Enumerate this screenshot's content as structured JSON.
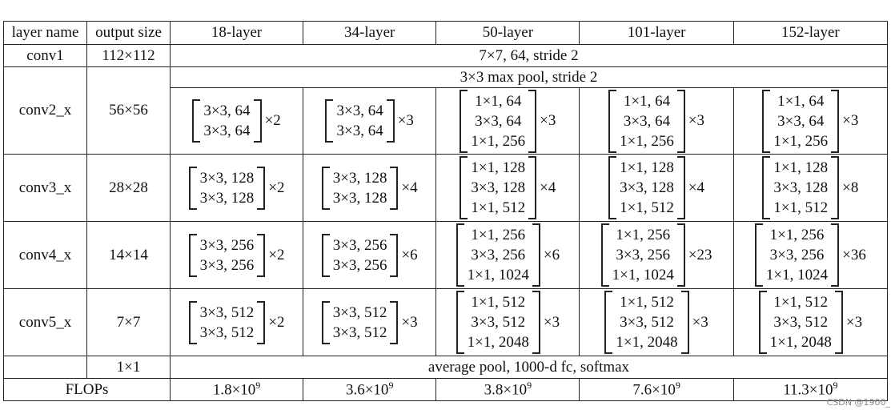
{
  "headers": [
    "layer name",
    "output size",
    "18-layer",
    "34-layer",
    "50-layer",
    "101-layer",
    "152-layer"
  ],
  "conv1": {
    "name": "conv1",
    "out": "112×112",
    "spec": "7×7, 64, stride 2"
  },
  "conv2": {
    "name": "conv2_x",
    "out": "56×56",
    "pool": "3×3 max pool, stride 2",
    "blocks": [
      {
        "lines": [
          "3×3, 64",
          "3×3, 64"
        ],
        "mult": "×2"
      },
      {
        "lines": [
          "3×3, 64",
          "3×3, 64"
        ],
        "mult": "×3"
      },
      {
        "lines": [
          "1×1, 64",
          "3×3, 64",
          "1×1, 256"
        ],
        "mult": "×3"
      },
      {
        "lines": [
          "1×1, 64",
          "3×3, 64",
          "1×1, 256"
        ],
        "mult": "×3"
      },
      {
        "lines": [
          "1×1, 64",
          "3×3, 64",
          "1×1, 256"
        ],
        "mult": "×3"
      }
    ]
  },
  "conv3": {
    "name": "conv3_x",
    "out": "28×28",
    "blocks": [
      {
        "lines": [
          "3×3, 128",
          "3×3, 128"
        ],
        "mult": "×2"
      },
      {
        "lines": [
          "3×3, 128",
          "3×3, 128"
        ],
        "mult": "×4"
      },
      {
        "lines": [
          "1×1, 128",
          "3×3, 128",
          "1×1, 512"
        ],
        "mult": "×4"
      },
      {
        "lines": [
          "1×1, 128",
          "3×3, 128",
          "1×1, 512"
        ],
        "mult": "×4"
      },
      {
        "lines": [
          "1×1, 128",
          "3×3, 128",
          "1×1, 512"
        ],
        "mult": "×8"
      }
    ]
  },
  "conv4": {
    "name": "conv4_x",
    "out": "14×14",
    "blocks": [
      {
        "lines": [
          "3×3, 256",
          "3×3, 256"
        ],
        "mult": "×2"
      },
      {
        "lines": [
          "3×3, 256",
          "3×3, 256"
        ],
        "mult": "×6"
      },
      {
        "lines": [
          "1×1, 256",
          "3×3, 256",
          "1×1, 1024"
        ],
        "mult": "×6"
      },
      {
        "lines": [
          "1×1, 256",
          "3×3, 256",
          "1×1, 1024"
        ],
        "mult": "×23"
      },
      {
        "lines": [
          "1×1, 256",
          "3×3, 256",
          "1×1, 1024"
        ],
        "mult": "×36"
      }
    ]
  },
  "conv5": {
    "name": "conv5_x",
    "out": "7×7",
    "blocks": [
      {
        "lines": [
          "3×3, 512",
          "3×3, 512"
        ],
        "mult": "×2"
      },
      {
        "lines": [
          "3×3, 512",
          "3×3, 512"
        ],
        "mult": "×3"
      },
      {
        "lines": [
          "1×1, 512",
          "3×3, 512",
          "1×1, 2048"
        ],
        "mult": "×3"
      },
      {
        "lines": [
          "1×1, 512",
          "3×3, 512",
          "1×1, 2048"
        ],
        "mult": "×3"
      },
      {
        "lines": [
          "1×1, 512",
          "3×3, 512",
          "1×1, 2048"
        ],
        "mult": "×3"
      }
    ]
  },
  "final": {
    "out": "1×1",
    "spec": "average pool, 1000-d fc, softmax"
  },
  "flops": {
    "label": "FLOPs",
    "values": [
      {
        "base": "1.8×10",
        "exp": "9"
      },
      {
        "base": "3.6×10",
        "exp": "9"
      },
      {
        "base": "3.8×10",
        "exp": "9"
      },
      {
        "base": "7.6×10",
        "exp": "9"
      },
      {
        "base": "11.3×10",
        "exp": "9"
      }
    ]
  },
  "watermark": "CSDN @1900_"
}
